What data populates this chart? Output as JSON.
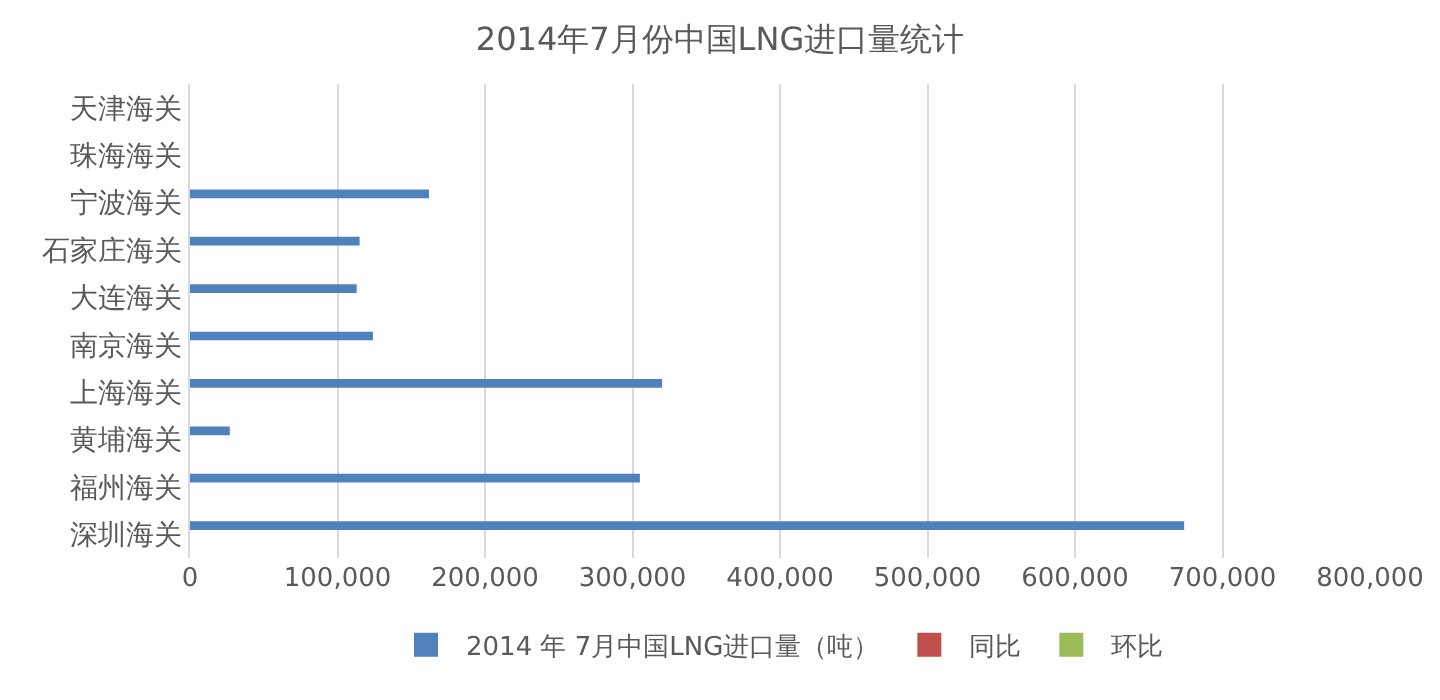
{
  "chart_data": {
    "type": "bar",
    "orientation": "horizontal",
    "title": "2014年7月份中国LNG进口量统计",
    "categories": [
      "天津海关",
      "珠海海关",
      "宁波海关",
      "石家庄海关",
      "大连海关",
      "南京海关",
      "上海海关",
      "黄埔海关",
      "福州海关",
      "深圳海关"
    ],
    "series": [
      {
        "name": "2014 年 7月中国LNG进口量（吨）",
        "color": "#4f81bd",
        "values": [
          0,
          0,
          162000,
          115000,
          113000,
          124000,
          320000,
          27000,
          305000,
          674000
        ]
      },
      {
        "name": "同比",
        "color": "#c0504d",
        "values": [
          null,
          null,
          null,
          null,
          null,
          null,
          null,
          null,
          null,
          null
        ]
      },
      {
        "name": "环比",
        "color": "#9bbb59",
        "values": [
          null,
          null,
          null,
          null,
          null,
          null,
          null,
          null,
          null,
          null
        ]
      }
    ],
    "xlim": [
      0,
      800000
    ],
    "xticks": [
      0,
      {
        "value": 100000,
        "label": "100,000"
      },
      {
        "value": 200000,
        "label": "200,000"
      },
      {
        "value": 300000,
        "label": "300,000"
      },
      {
        "value": 400000,
        "label": "400,000"
      },
      {
        "value": 500000,
        "label": "500,000"
      },
      {
        "value": 600000,
        "label": "600,000"
      },
      {
        "value": 700000,
        "label": "700,000"
      },
      {
        "value": 800000,
        "label": "800,000"
      }
    ],
    "grid": "x",
    "legend": "bottom"
  }
}
